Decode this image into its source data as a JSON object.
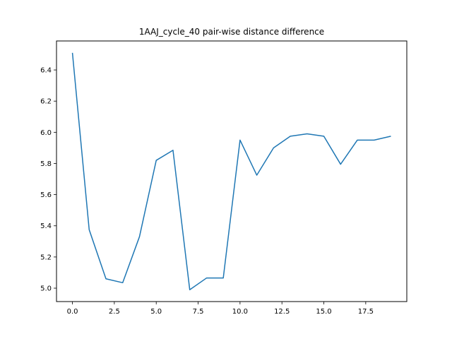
{
  "chart_data": {
    "type": "line",
    "title": "1AAJ_cycle_40 pair-wise distance difference",
    "xlabel": "",
    "ylabel": "",
    "x": [
      0,
      1,
      2,
      3,
      4,
      5,
      6,
      7,
      8,
      9,
      10,
      11,
      12,
      13,
      14,
      15,
      16,
      17,
      18,
      19
    ],
    "series": [
      {
        "values": [
          6.51,
          5.375,
          5.06,
          5.035,
          5.33,
          5.82,
          5.885,
          4.99,
          5.065,
          5.065,
          5.95,
          5.725,
          5.9,
          5.975,
          5.99,
          5.975,
          5.795,
          5.95,
          5.95,
          5.975
        ],
        "color": "#1f77b4"
      }
    ],
    "xlim": [
      -0.95,
      19.95
    ],
    "ylim": [
      4.914,
      6.586
    ],
    "xticks": [
      0.0,
      2.5,
      5.0,
      7.5,
      10.0,
      12.5,
      15.0,
      17.5
    ],
    "xtick_labels": [
      "0.0",
      "2.5",
      "5.0",
      "7.5",
      "10.0",
      "12.5",
      "15.0",
      "17.5"
    ],
    "yticks": [
      5.0,
      5.2,
      5.4,
      5.6,
      5.8,
      6.0,
      6.2,
      6.4
    ],
    "ytick_labels": [
      "5.0",
      "5.2",
      "5.4",
      "5.6",
      "5.8",
      "6.0",
      "6.2",
      "6.4"
    ],
    "grid": false,
    "legend": "none"
  }
}
